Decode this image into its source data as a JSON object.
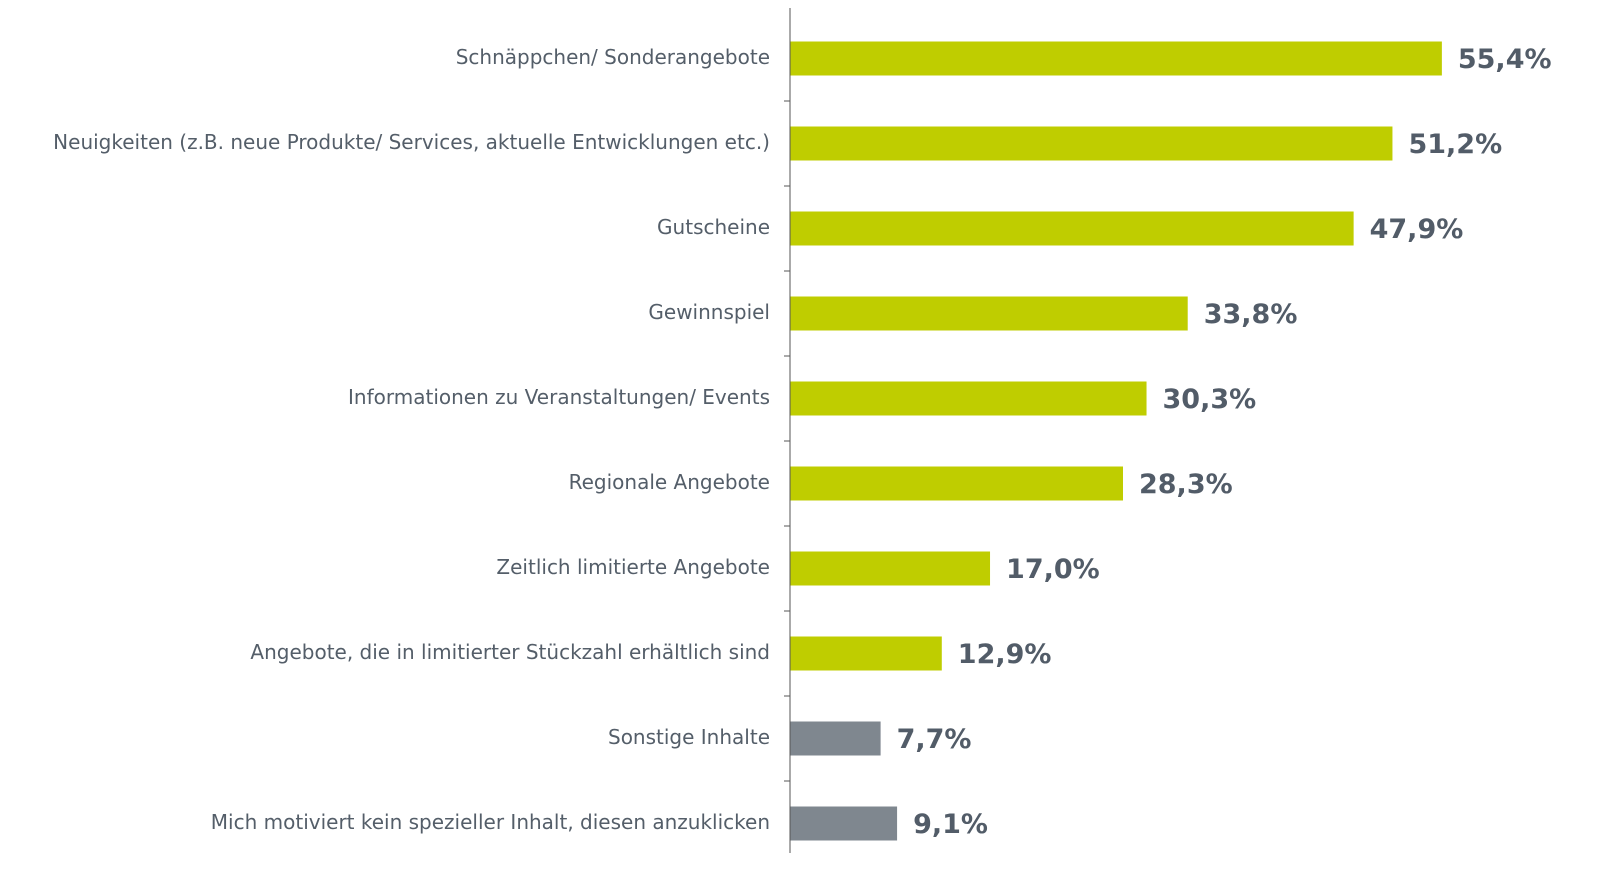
{
  "chart_data": {
    "type": "bar",
    "orientation": "horizontal",
    "categories": [
      "Schnäppchen/ Sonderangebote",
      "Neuigkeiten (z.B. neue Produkte/ Services, aktuelle Entwicklungen etc.)",
      "Gutscheine",
      "Gewinnspiel",
      "Informationen zu Veranstaltungen/ Events",
      "Regionale Angebote",
      "Zeitlich limitierte Angebote",
      "Angebote, die in limitierter Stückzahl erhältlich sind",
      "Sonstige Inhalte",
      "Mich motiviert kein spezieller Inhalt, diesen anzuklicken"
    ],
    "values": [
      55.4,
      51.2,
      47.9,
      33.8,
      30.3,
      28.3,
      17.0,
      12.9,
      7.7,
      9.1
    ],
    "value_labels": [
      "55,4%",
      "51,2%",
      "47,9%",
      "33,8%",
      "30,3%",
      "28,3%",
      "17,0%",
      "12,9%",
      "7,7%",
      "9,1%"
    ],
    "colors": [
      "#bfcd00",
      "#bfcd00",
      "#bfcd00",
      "#bfcd00",
      "#bfcd00",
      "#bfcd00",
      "#bfcd00",
      "#bfcd00",
      "#7f878f",
      "#7f878f"
    ],
    "xlim": [
      0,
      60
    ]
  }
}
